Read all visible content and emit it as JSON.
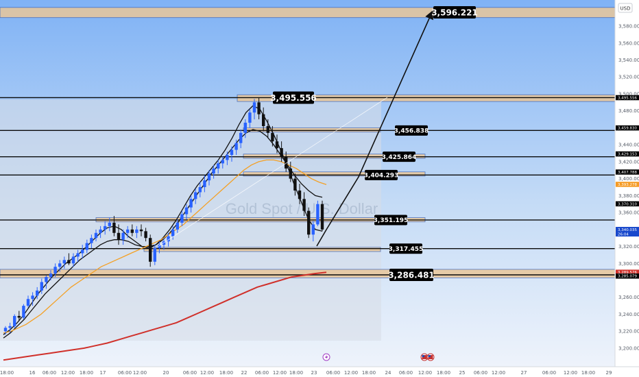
{
  "chart_data": {
    "type": "candlestick",
    "currency": "USD",
    "watermark": "Gold Spot / U.S. Dollar",
    "y_range": [
      3190,
      3608
    ],
    "y_ticks": [
      {
        "value": 3580,
        "label": "3,580.000"
      },
      {
        "value": 3560,
        "label": "3,560.000"
      },
      {
        "value": 3540,
        "label": "3,540.000"
      },
      {
        "value": 3520,
        "label": "3,520.000"
      },
      {
        "value": 3500,
        "label": "3,500.000"
      },
      {
        "value": 3480,
        "label": "3,480.000"
      },
      {
        "value": 3440,
        "label": "3,440.000"
      },
      {
        "value": 3420,
        "label": "3,420.000"
      },
      {
        "value": 3400,
        "label": "3,400.000"
      },
      {
        "value": 3380,
        "label": "3,380.000"
      },
      {
        "value": 3360,
        "label": "3,360.000"
      },
      {
        "value": 3320,
        "label": "3,320.000"
      },
      {
        "value": 3300,
        "label": "3,300.000"
      },
      {
        "value": 3260,
        "label": "3,260.000"
      },
      {
        "value": 3240,
        "label": "3,240.000"
      },
      {
        "value": 3220,
        "label": "3,220.000"
      },
      {
        "value": 3200,
        "label": "3,200.000"
      }
    ],
    "x_ticks": [
      "18:00",
      "16",
      "06:00",
      "12:00",
      "18:00",
      "17",
      "06:00",
      "12:00",
      "20",
      "06:00",
      "12:00",
      "18:00",
      "22",
      "06:00",
      "12:00",
      "18:00",
      "23",
      "06:00",
      "12:00",
      "18:00",
      "24",
      "06:00",
      "12:00",
      "18:00",
      "25",
      "06:00",
      "12:00",
      "27",
      "06:00",
      "12:00",
      "18:00",
      "29"
    ],
    "levels": [
      {
        "value": 3596.221,
        "label": "3,596.221",
        "zone": [
          3590,
          3602
        ]
      },
      {
        "value": 3495.556,
        "label": "3,495.556",
        "zone": [
          3491,
          3499
        ]
      },
      {
        "value": 3456.838,
        "label": "3,456.838",
        "zone": [
          3455,
          3460
        ]
      },
      {
        "value": 3425.864,
        "label": "3,425.864",
        "zone": [
          3424,
          3429
        ]
      },
      {
        "value": 3404.293,
        "label": "3,404.293",
        "zone": [
          3403,
          3408
        ]
      },
      {
        "value": 3351.195,
        "label": "3,351.195",
        "zone": [
          3349,
          3354
        ]
      },
      {
        "value": 3317.455,
        "label": "3,317.455",
        "zone": [
          3314,
          3319
        ]
      },
      {
        "value": 3286.481,
        "label": "3,286.481",
        "zone": [
          3283,
          3293
        ]
      }
    ],
    "price_axis_labels": [
      {
        "value": 3495.556,
        "label": "3,495.556",
        "color": "#000000"
      },
      {
        "value": 3459.83,
        "label": "3,459.830",
        "color": "#000000"
      },
      {
        "value": 3429.153,
        "label": "3,429.153",
        "color": "#000000"
      },
      {
        "value": 3407.788,
        "label": "3,407.788",
        "color": "#000000"
      },
      {
        "value": 3393.278,
        "label": "3,393.278",
        "color": "#f59a23"
      },
      {
        "value": 3370.31,
        "label": "3,370.310",
        "color": "#000000"
      },
      {
        "value": 3340.035,
        "label": "3,340.035",
        "sub": "26:04",
        "color": "#1848cc"
      },
      {
        "value": 3289.576,
        "label": "3,289.576",
        "color": "#d0302a"
      },
      {
        "value": 3285.079,
        "label": "3,285.079",
        "color": "#000000"
      }
    ],
    "forecast_path": [
      {
        "x": 0.0,
        "y": 3330.0
      },
      {
        "x": 0.64,
        "y": 3335.0
      },
      {
        "x": 0.82,
        "y": 3402.0
      },
      {
        "x": 2.3,
        "y": 3596.221
      }
    ],
    "candles": [
      [
        3220,
        3226,
        3216,
        3224
      ],
      [
        3224,
        3230,
        3218,
        3226
      ],
      [
        3226,
        3240,
        3224,
        3238
      ],
      [
        3238,
        3244,
        3232,
        3236
      ],
      [
        3236,
        3252,
        3234,
        3250
      ],
      [
        3250,
        3262,
        3248,
        3258
      ],
      [
        3258,
        3266,
        3250,
        3262
      ],
      [
        3262,
        3272,
        3258,
        3268
      ],
      [
        3268,
        3282,
        3264,
        3278
      ],
      [
        3278,
        3286,
        3270,
        3284
      ],
      [
        3284,
        3292,
        3280,
        3288
      ],
      [
        3288,
        3300,
        3284,
        3296
      ],
      [
        3296,
        3304,
        3290,
        3300
      ],
      [
        3300,
        3308,
        3294,
        3304
      ],
      [
        3304,
        3312,
        3298,
        3300
      ],
      [
        3300,
        3312,
        3296,
        3308
      ],
      [
        3308,
        3316,
        3302,
        3312
      ],
      [
        3312,
        3322,
        3306,
        3316
      ],
      [
        3316,
        3328,
        3312,
        3324
      ],
      [
        3324,
        3334,
        3318,
        3330
      ],
      [
        3330,
        3340,
        3326,
        3336
      ],
      [
        3336,
        3344,
        3330,
        3340
      ],
      [
        3340,
        3350,
        3334,
        3344
      ],
      [
        3344,
        3354,
        3338,
        3348
      ],
      [
        3348,
        3356,
        3332,
        3336
      ],
      [
        3336,
        3346,
        3322,
        3328
      ],
      [
        3328,
        3340,
        3322,
        3336
      ],
      [
        3336,
        3344,
        3330,
        3340
      ],
      [
        3340,
        3346,
        3332,
        3336
      ],
      [
        3336,
        3344,
        3330,
        3340
      ],
      [
        3340,
        3346,
        3332,
        3338
      ],
      [
        3338,
        3342,
        3326,
        3330
      ],
      [
        3330,
        3334,
        3296,
        3302
      ],
      [
        3302,
        3322,
        3298,
        3318
      ],
      [
        3318,
        3326,
        3312,
        3322
      ],
      [
        3322,
        3330,
        3316,
        3326
      ],
      [
        3326,
        3336,
        3320,
        3332
      ],
      [
        3332,
        3344,
        3328,
        3340
      ],
      [
        3340,
        3352,
        3336,
        3348
      ],
      [
        3348,
        3362,
        3344,
        3358
      ],
      [
        3358,
        3370,
        3352,
        3366
      ],
      [
        3366,
        3380,
        3360,
        3376
      ],
      [
        3376,
        3388,
        3370,
        3384
      ],
      [
        3384,
        3396,
        3378,
        3390
      ],
      [
        3390,
        3404,
        3384,
        3398
      ],
      [
        3398,
        3410,
        3392,
        3406
      ],
      [
        3406,
        3416,
        3400,
        3412
      ],
      [
        3412,
        3422,
        3406,
        3418
      ],
      [
        3418,
        3426,
        3412,
        3422
      ],
      [
        3422,
        3432,
        3416,
        3428
      ],
      [
        3428,
        3438,
        3420,
        3434
      ],
      [
        3434,
        3446,
        3428,
        3442
      ],
      [
        3442,
        3458,
        3436,
        3454
      ],
      [
        3454,
        3470,
        3448,
        3466
      ],
      [
        3466,
        3482,
        3460,
        3478
      ],
      [
        3478,
        3494,
        3470,
        3490
      ],
      [
        3490,
        3496,
        3470,
        3476
      ],
      [
        3476,
        3484,
        3456,
        3462
      ],
      [
        3462,
        3470,
        3448,
        3454
      ],
      [
        3454,
        3462,
        3438,
        3444
      ],
      [
        3444,
        3452,
        3430,
        3436
      ],
      [
        3436,
        3444,
        3420,
        3426
      ],
      [
        3426,
        3432,
        3408,
        3412
      ],
      [
        3412,
        3420,
        3396,
        3400
      ],
      [
        3400,
        3406,
        3380,
        3386
      ],
      [
        3386,
        3394,
        3370,
        3376
      ],
      [
        3376,
        3384,
        3356,
        3362
      ],
      [
        3362,
        3366,
        3330,
        3334
      ],
      [
        3334,
        3350,
        3326,
        3346
      ],
      [
        3346,
        3374,
        3344,
        3370
      ],
      [
        3370,
        3374,
        3338,
        3340
      ]
    ],
    "series": [
      {
        "name": "",
        "color": "#111111",
        "values": [
          3216,
          3222,
          3230,
          3240,
          3252,
          3264,
          3274,
          3284,
          3292,
          3300,
          3306,
          3312,
          3320,
          3328,
          3336,
          3342,
          3344,
          3340,
          3332,
          3326,
          3320,
          3318,
          3322,
          3330,
          3340,
          3352,
          3366,
          3380,
          3392,
          3402,
          3412,
          3422,
          3434,
          3448,
          3464,
          3478,
          3486,
          3482,
          3468,
          3452,
          3434,
          3414,
          3392,
          3372,
          3352,
          3340,
          3338
        ]
      },
      {
        "name": "",
        "color": "#111111",
        "values": [
          3212,
          3218,
          3226,
          3234,
          3244,
          3254,
          3264,
          3272,
          3280,
          3288,
          3296,
          3304,
          3310,
          3316,
          3322,
          3326,
          3328,
          3328,
          3326,
          3322,
          3320,
          3320,
          3322,
          3328,
          3336,
          3346,
          3358,
          3370,
          3382,
          3394,
          3406,
          3416,
          3426,
          3436,
          3446,
          3454,
          3458,
          3456,
          3450,
          3440,
          3428,
          3416,
          3404,
          3394,
          3386,
          3380,
          3378
        ]
      },
      {
        "name": "",
        "color": "#f4a024",
        "values": [
          3218,
          3220,
          3224,
          3228,
          3234,
          3240,
          3248,
          3256,
          3264,
          3272,
          3278,
          3284,
          3290,
          3296,
          3300,
          3304,
          3308,
          3312,
          3316,
          3320,
          3324,
          3328,
          3334,
          3340,
          3346,
          3354,
          3362,
          3370,
          3378,
          3386,
          3394,
          3402,
          3410,
          3416,
          3420,
          3422,
          3422,
          3420,
          3416,
          3412,
          3406,
          3400,
          3396,
          3393
        ]
      },
      {
        "name": "",
        "color": "#d0302a",
        "values": [
          3186,
          3188,
          3190,
          3192,
          3194,
          3196,
          3198,
          3200,
          3203,
          3206,
          3210,
          3214,
          3218,
          3222,
          3226,
          3230,
          3236,
          3242,
          3248,
          3254,
          3260,
          3266,
          3272,
          3276,
          3280,
          3284,
          3286,
          3288,
          3289.576
        ]
      }
    ]
  }
}
